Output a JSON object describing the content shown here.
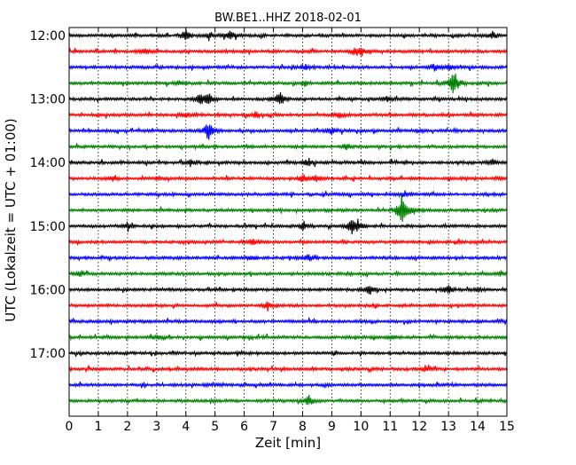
{
  "chart_data": {
    "type": "line",
    "title": "BW.BE1..HHZ 2018-02-01",
    "xlabel": "Zeit  [min]",
    "ylabel": "UTC (Lokalzeit = UTC + 01:00)",
    "xlim": [
      0,
      15
    ],
    "x_ticks": [
      0,
      1,
      2,
      3,
      4,
      5,
      6,
      7,
      8,
      9,
      10,
      11,
      12,
      13,
      14,
      15
    ],
    "y_tick_labels": [
      "12:00",
      "13:00",
      "14:00",
      "15:00",
      "16:00",
      "17:00"
    ],
    "grid": "vertical dotted lines",
    "trace_colors": [
      "#000000",
      "#ff0000",
      "#0000ff",
      "#008000"
    ],
    "traces": [
      {
        "start": "12:00",
        "color": "#000000",
        "events": [
          [
            4.0,
            0.35
          ],
          [
            4.8,
            0.25
          ],
          [
            5.5,
            0.3
          ],
          [
            14.5,
            0.25
          ]
        ]
      },
      {
        "start": "12:15",
        "color": "#ff0000",
        "events": [
          [
            2.6,
            0.15
          ],
          [
            10.0,
            0.3
          ],
          [
            9.8,
            0.2
          ]
        ]
      },
      {
        "start": "12:30",
        "color": "#0000ff",
        "events": [
          [
            8.1,
            0.15
          ],
          [
            12.5,
            0.25
          ],
          [
            13.0,
            0.2
          ]
        ]
      },
      {
        "start": "12:45",
        "color": "#008000",
        "events": [
          [
            3.8,
            0.15
          ],
          [
            8.1,
            0.2
          ],
          [
            13.2,
            1.0
          ]
        ]
      },
      {
        "start": "13:00",
        "color": "#000000",
        "events": [
          [
            4.5,
            0.3
          ],
          [
            4.8,
            0.45
          ],
          [
            7.2,
            0.5
          ],
          [
            10.9,
            0.2
          ]
        ]
      },
      {
        "start": "13:15",
        "color": "#ff0000",
        "events": [
          [
            4.0,
            0.15
          ],
          [
            6.4,
            0.2
          ],
          [
            9.3,
            0.2
          ]
        ]
      },
      {
        "start": "13:30",
        "color": "#0000ff",
        "events": [
          [
            4.8,
            0.9
          ],
          [
            9.0,
            0.2
          ],
          [
            12.0,
            0.15
          ]
        ]
      },
      {
        "start": "13:45",
        "color": "#008000",
        "events": [
          [
            9.5,
            0.2
          ]
        ]
      },
      {
        "start": "14:00",
        "color": "#000000",
        "events": [
          [
            4.2,
            0.2
          ],
          [
            8.2,
            0.25
          ],
          [
            14.5,
            0.2
          ]
        ]
      },
      {
        "start": "14:15",
        "color": "#ff0000",
        "events": [
          [
            1.5,
            0.2
          ],
          [
            8.0,
            0.3
          ],
          [
            8.5,
            0.2
          ]
        ]
      },
      {
        "start": "14:30",
        "color": "#0000ff",
        "events": [
          [
            11.5,
            0.2
          ]
        ]
      },
      {
        "start": "14:45",
        "color": "#008000",
        "events": [
          [
            11.4,
            1.0
          ],
          [
            11.8,
            0.2
          ]
        ]
      },
      {
        "start": "15:00",
        "color": "#000000",
        "events": [
          [
            2.0,
            0.2
          ],
          [
            8.0,
            0.25
          ],
          [
            9.7,
            0.55
          ],
          [
            9.9,
            0.3
          ]
        ]
      },
      {
        "start": "15:15",
        "color": "#ff0000",
        "events": [
          [
            6.3,
            0.2
          ]
        ]
      },
      {
        "start": "15:30",
        "color": "#0000ff",
        "events": [
          [
            8.2,
            0.25
          ],
          [
            6.3,
            0.15
          ]
        ]
      },
      {
        "start": "15:45",
        "color": "#008000",
        "events": [
          [
            0.4,
            0.2
          ],
          [
            14.8,
            0.15
          ]
        ]
      },
      {
        "start": "16:00",
        "color": "#000000",
        "events": [
          [
            10.3,
            0.3
          ],
          [
            13.0,
            0.35
          ],
          [
            14.0,
            0.15
          ]
        ]
      },
      {
        "start": "16:15",
        "color": "#ff0000",
        "events": [
          [
            6.8,
            0.2
          ]
        ]
      },
      {
        "start": "16:30",
        "color": "#0000ff",
        "events": []
      },
      {
        "start": "16:45",
        "color": "#008000",
        "events": [
          [
            3.0,
            0.15
          ],
          [
            11.0,
            0.15
          ]
        ]
      },
      {
        "start": "17:00",
        "color": "#000000",
        "events": []
      },
      {
        "start": "17:15",
        "color": "#ff0000",
        "events": [
          [
            12.2,
            0.15
          ]
        ]
      },
      {
        "start": "17:30",
        "color": "#0000ff",
        "events": []
      },
      {
        "start": "17:45",
        "color": "#008000",
        "events": [
          [
            8.2,
            0.4
          ]
        ]
      }
    ]
  }
}
